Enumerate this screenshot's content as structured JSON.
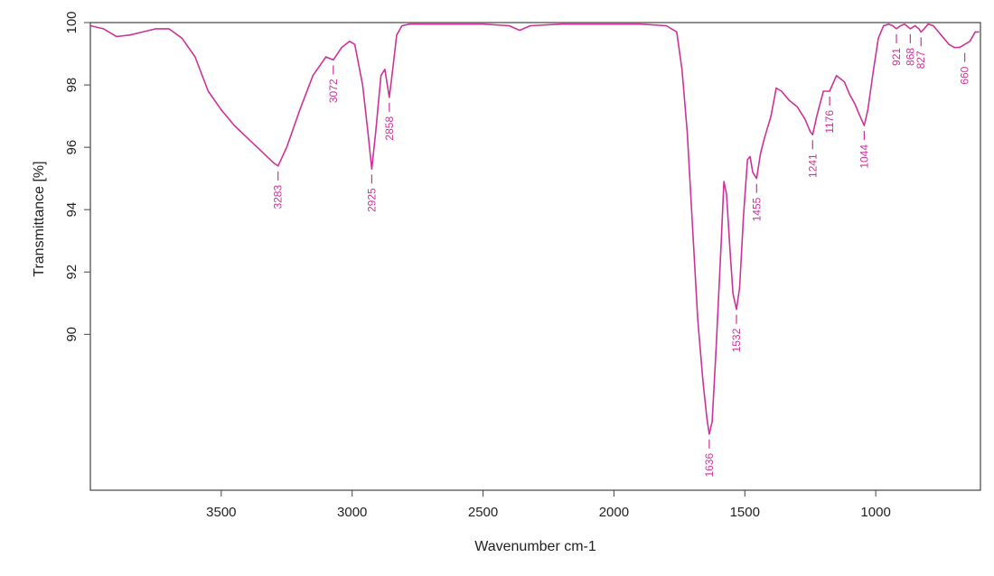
{
  "chart_data": {
    "type": "line",
    "title": "",
    "xlabel": "Wavenumber cm-1",
    "ylabel": "Transmittance [%]",
    "xlim": [
      4000,
      600
    ],
    "ylim": [
      85,
      100
    ],
    "x_direction": "reversed",
    "xticks": [
      3500,
      3000,
      2500,
      2000,
      1500,
      1000
    ],
    "yticks": [
      90,
      92,
      94,
      96,
      98,
      100
    ],
    "grid": false,
    "legend": "none",
    "line_color": "#cc3399",
    "series": [
      {
        "x": [
          4000,
          3950,
          3900,
          3850,
          3800,
          3750,
          3700,
          3650,
          3600,
          3550,
          3500,
          3450,
          3400,
          3350,
          3300,
          3283,
          3250,
          3200,
          3150,
          3100,
          3072,
          3040,
          3010,
          2990,
          2960,
          2940,
          2925,
          2910,
          2890,
          2875,
          2858,
          2845,
          2830,
          2810,
          2780,
          2700,
          2600,
          2500,
          2400,
          2360,
          2320,
          2200,
          2000,
          1900,
          1800,
          1760,
          1740,
          1720,
          1700,
          1680,
          1660,
          1645,
          1636,
          1625,
          1610,
          1590,
          1580,
          1570,
          1555,
          1545,
          1532,
          1520,
          1505,
          1490,
          1480,
          1470,
          1455,
          1440,
          1425,
          1400,
          1380,
          1360,
          1330,
          1300,
          1270,
          1250,
          1241,
          1225,
          1200,
          1176,
          1150,
          1120,
          1100,
          1080,
          1060,
          1044,
          1030,
          1010,
          990,
          970,
          950,
          935,
          921,
          905,
          890,
          868,
          850,
          835,
          827,
          815,
          800,
          780,
          760,
          740,
          720,
          700,
          680,
          660,
          640,
          620,
          605
        ],
        "y": [
          99.9,
          99.8,
          99.55,
          99.6,
          99.7,
          99.8,
          99.8,
          99.5,
          98.9,
          97.8,
          97.2,
          96.7,
          96.3,
          95.9,
          95.5,
          95.4,
          96.0,
          97.2,
          98.3,
          98.9,
          98.8,
          99.2,
          99.4,
          99.3,
          98.0,
          96.5,
          95.3,
          96.5,
          98.3,
          98.5,
          97.6,
          98.5,
          99.6,
          99.9,
          99.95,
          99.95,
          99.95,
          99.95,
          99.9,
          99.75,
          99.9,
          99.95,
          99.95,
          99.95,
          99.9,
          99.7,
          98.5,
          96.5,
          93.5,
          90.5,
          88.5,
          87.3,
          86.8,
          87.2,
          89.5,
          93.0,
          94.9,
          94.5,
          92.5,
          91.3,
          90.8,
          91.5,
          93.8,
          95.6,
          95.7,
          95.2,
          95.0,
          95.8,
          96.3,
          97.0,
          97.9,
          97.8,
          97.5,
          97.3,
          96.9,
          96.5,
          96.4,
          97.0,
          97.8,
          97.8,
          98.3,
          98.1,
          97.7,
          97.4,
          97.0,
          96.7,
          97.2,
          98.4,
          99.5,
          99.9,
          99.95,
          99.9,
          99.8,
          99.9,
          99.95,
          99.8,
          99.9,
          99.8,
          99.7,
          99.8,
          99.95,
          99.9,
          99.7,
          99.5,
          99.3,
          99.2,
          99.2,
          99.3,
          99.4,
          99.7,
          99.7
        ]
      }
    ],
    "annotations": [
      {
        "label": "3283",
        "x": 3283,
        "y": 95.4
      },
      {
        "label": "3072",
        "x": 3072,
        "y": 98.8
      },
      {
        "label": "2925",
        "x": 2925,
        "y": 95.3
      },
      {
        "label": "2858",
        "x": 2858,
        "y": 97.6
      },
      {
        "label": "1636",
        "x": 1636,
        "y": 86.8
      },
      {
        "label": "1532",
        "x": 1532,
        "y": 90.8
      },
      {
        "label": "1455",
        "x": 1455,
        "y": 95.0
      },
      {
        "label": "1241",
        "x": 1241,
        "y": 96.4
      },
      {
        "label": "1176",
        "x": 1176,
        "y": 97.8
      },
      {
        "label": "1044",
        "x": 1044,
        "y": 96.7
      },
      {
        "label": "921",
        "x": 921,
        "y": 99.8
      },
      {
        "label": "868",
        "x": 868,
        "y": 99.8
      },
      {
        "label": "827",
        "x": 827,
        "y": 99.7
      },
      {
        "label": "660",
        "x": 660,
        "y": 99.2
      }
    ]
  }
}
